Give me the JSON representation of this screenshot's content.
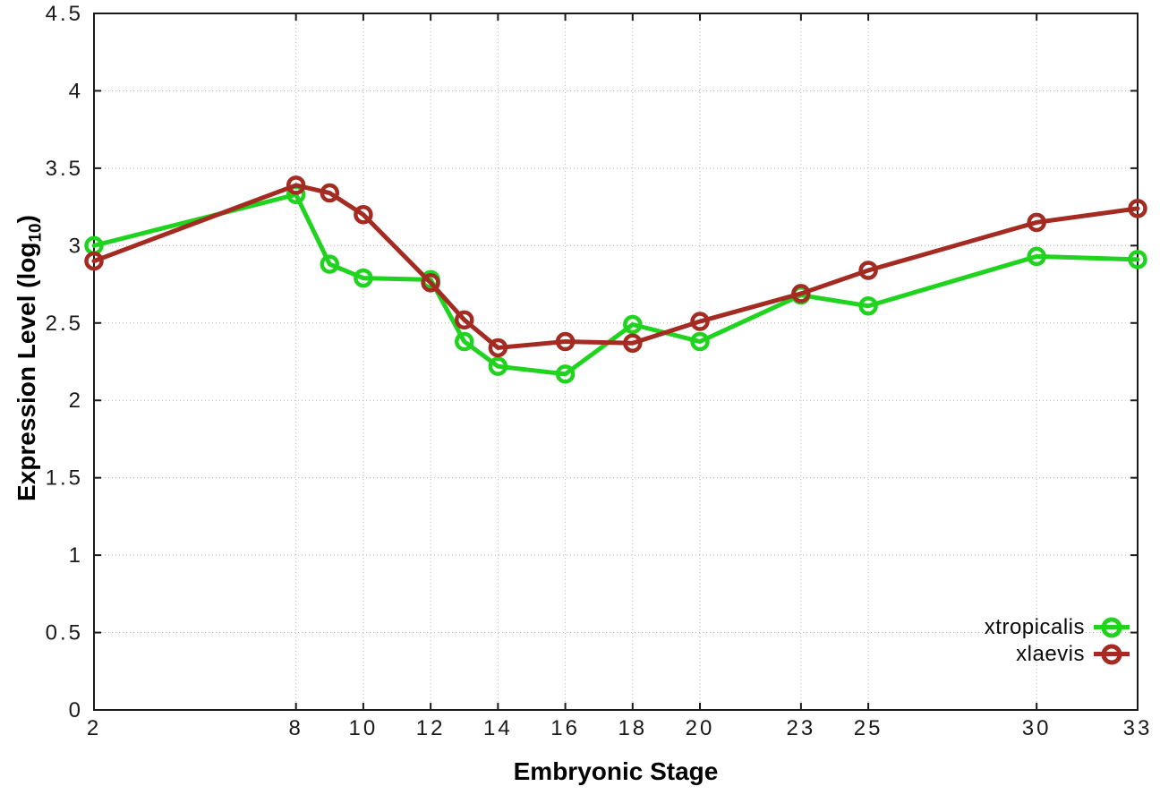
{
  "chart_data": {
    "type": "line",
    "title": "",
    "xlabel": "Embryonic Stage",
    "ylabel": "Expression Level (log10)",
    "ylabel_parts": {
      "main": "Expression Level (log",
      "sub": "10",
      "close": ")"
    },
    "xlim": [
      2,
      33
    ],
    "ylim": [
      0,
      4.5
    ],
    "xticks": [
      2,
      8,
      10,
      12,
      14,
      16,
      18,
      20,
      23,
      25,
      30,
      33
    ],
    "yticks": [
      0,
      0.5,
      1,
      1.5,
      2,
      2.5,
      3,
      3.5,
      4,
      4.5
    ],
    "xtick_labels": [
      "2",
      "8",
      "10",
      "12",
      "14",
      "16",
      "18",
      "20",
      "23",
      "25",
      "30",
      "33"
    ],
    "ytick_labels": [
      "0",
      "0.5",
      "1",
      "1.5",
      "2",
      "2.5",
      "3",
      "3.5",
      "4",
      "4.5"
    ],
    "grid": true,
    "grid_style": "dotted",
    "legend_position": "bottom-right",
    "marker": "open-circle",
    "x": [
      2,
      8,
      9,
      10,
      12,
      13,
      14,
      16,
      18,
      20,
      23,
      25,
      30,
      33
    ],
    "series": [
      {
        "name": "xtropicalis",
        "color": "#1fd31f",
        "values": [
          3.0,
          3.33,
          2.88,
          2.79,
          2.78,
          2.38,
          2.22,
          2.17,
          2.49,
          2.38,
          2.68,
          2.61,
          2.93,
          2.91
        ]
      },
      {
        "name": "xlaevis",
        "color": "#a32b22",
        "values": [
          2.9,
          3.39,
          3.34,
          3.2,
          2.76,
          2.52,
          2.34,
          2.38,
          2.37,
          2.51,
          2.69,
          2.84,
          3.15,
          3.24
        ]
      }
    ],
    "colors": {
      "grid": "#b5b5b5",
      "border": "#1a1a1a",
      "text": "#1a1a1a"
    }
  }
}
